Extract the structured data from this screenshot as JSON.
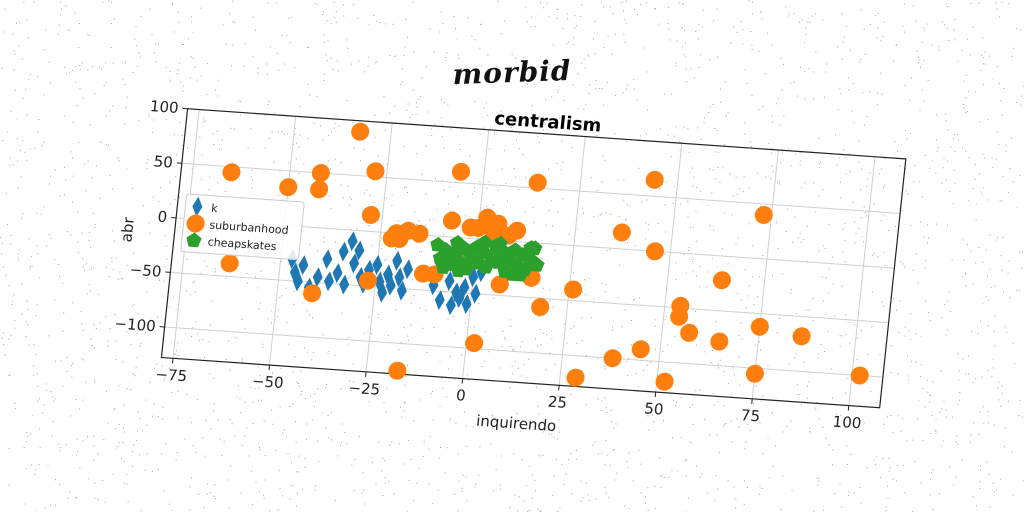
{
  "overtitle": "morbid",
  "chart_data": {
    "type": "scatter",
    "title": "centralism",
    "xlabel": "inquirendo",
    "ylabel": "abr",
    "xlim": [
      -78,
      108
    ],
    "ylim": [
      -128,
      100
    ],
    "xticks": [
      -75,
      -50,
      -25,
      0,
      25,
      50,
      75,
      100
    ],
    "yticks": [
      -100,
      -50,
      0,
      50,
      100
    ],
    "grid": true,
    "legend_position": "center-left",
    "series": [
      {
        "name": "k",
        "marker": "diamond",
        "color": "#1f77b4",
        "points": [
          [
            -47,
            -30
          ],
          [
            -46,
            -42
          ],
          [
            -45,
            -50
          ],
          [
            -44,
            -35
          ],
          [
            -42,
            -55
          ],
          [
            -40,
            -45
          ],
          [
            -38,
            -28
          ],
          [
            -37,
            -48
          ],
          [
            -35,
            -40
          ],
          [
            -34,
            -20
          ],
          [
            -33,
            -50
          ],
          [
            -32,
            -10
          ],
          [
            -31,
            -30
          ],
          [
            -30,
            -18
          ],
          [
            -29,
            -42
          ],
          [
            -28,
            -48
          ],
          [
            -27,
            -35
          ],
          [
            -25,
            -30
          ],
          [
            -24,
            -45
          ],
          [
            -23,
            -55
          ],
          [
            -22,
            -38
          ],
          [
            -21,
            -48
          ],
          [
            -20,
            -25
          ],
          [
            -19,
            -40
          ],
          [
            -18,
            -52
          ],
          [
            -17,
            -32
          ],
          [
            -10,
            -45
          ],
          [
            -8,
            -58
          ],
          [
            -6,
            -40
          ],
          [
            -5,
            -62
          ],
          [
            -4,
            -50
          ],
          [
            -3,
            -55
          ],
          [
            -2,
            -45
          ],
          [
            -1,
            -60
          ],
          [
            0,
            -35
          ],
          [
            1,
            -50
          ],
          [
            2,
            -30
          ]
        ]
      },
      {
        "name": "suburbanhood",
        "marker": "circle",
        "color": "#ff7f0e",
        "points": [
          [
            -65,
            45
          ],
          [
            -63,
            -38
          ],
          [
            -50,
            35
          ],
          [
            -42,
            50
          ],
          [
            -42,
            35
          ],
          [
            -41,
            -60
          ],
          [
            -33,
            90
          ],
          [
            -28,
            55
          ],
          [
            -28,
            15
          ],
          [
            -27,
            -45
          ],
          [
            -22,
            -5
          ],
          [
            -21,
            0
          ],
          [
            -20,
            -5
          ],
          [
            -18,
            3
          ],
          [
            -17,
            -125
          ],
          [
            -15,
            1
          ],
          [
            -13,
            -35
          ],
          [
            -10,
            -35
          ],
          [
            -7,
            15
          ],
          [
            -6,
            60
          ],
          [
            -5,
            -20
          ],
          [
            -3,
            -25
          ],
          [
            -2,
            10
          ],
          [
            0,
            10
          ],
          [
            2,
            20
          ],
          [
            2,
            -95
          ],
          [
            4,
            8
          ],
          [
            5,
            15
          ],
          [
            7,
            -40
          ],
          [
            8,
            5
          ],
          [
            10,
            10
          ],
          [
            14,
            55
          ],
          [
            15,
            -32
          ],
          [
            18,
            -58
          ],
          [
            26,
            -40
          ],
          [
            29,
            -120
          ],
          [
            37,
            15
          ],
          [
            38,
            -100
          ],
          [
            44,
            65
          ],
          [
            45,
            -90
          ],
          [
            46,
            0
          ],
          [
            52,
            -118
          ],
          [
            54,
            -48
          ],
          [
            54,
            -58
          ],
          [
            57,
            -72
          ],
          [
            64,
            -22
          ],
          [
            65,
            -78
          ],
          [
            73,
            40
          ],
          [
            75,
            -62
          ],
          [
            75,
            -105
          ],
          [
            86,
            -68
          ],
          [
            102,
            -100
          ]
        ]
      },
      {
        "name": "cheapskates",
        "marker": "pentagon",
        "color": "#2ca02c",
        "points": [
          [
            -10,
            -8
          ],
          [
            -9,
            -20
          ],
          [
            -8,
            -12
          ],
          [
            -7,
            -25
          ],
          [
            -6,
            -15
          ],
          [
            -5,
            -5
          ],
          [
            -4,
            -22
          ],
          [
            -3,
            -10
          ],
          [
            -2,
            -28
          ],
          [
            -1,
            -18
          ],
          [
            0,
            -8
          ],
          [
            1,
            -22
          ],
          [
            2,
            -12
          ],
          [
            3,
            -25
          ],
          [
            4,
            -15
          ],
          [
            5,
            -5
          ],
          [
            6,
            -20
          ],
          [
            7,
            -10
          ],
          [
            8,
            -28
          ],
          [
            9,
            -18
          ],
          [
            10,
            -8
          ],
          [
            11,
            -22
          ],
          [
            12,
            -12
          ],
          [
            13,
            -25
          ],
          [
            14,
            -15
          ],
          [
            15,
            -5
          ],
          [
            16,
            -20
          ],
          [
            -8,
            -28
          ],
          [
            2,
            -3
          ],
          [
            10,
            -30
          ],
          [
            -4,
            -30
          ],
          [
            6,
            -3
          ],
          [
            12,
            -30
          ],
          [
            14,
            -5
          ]
        ]
      }
    ]
  }
}
